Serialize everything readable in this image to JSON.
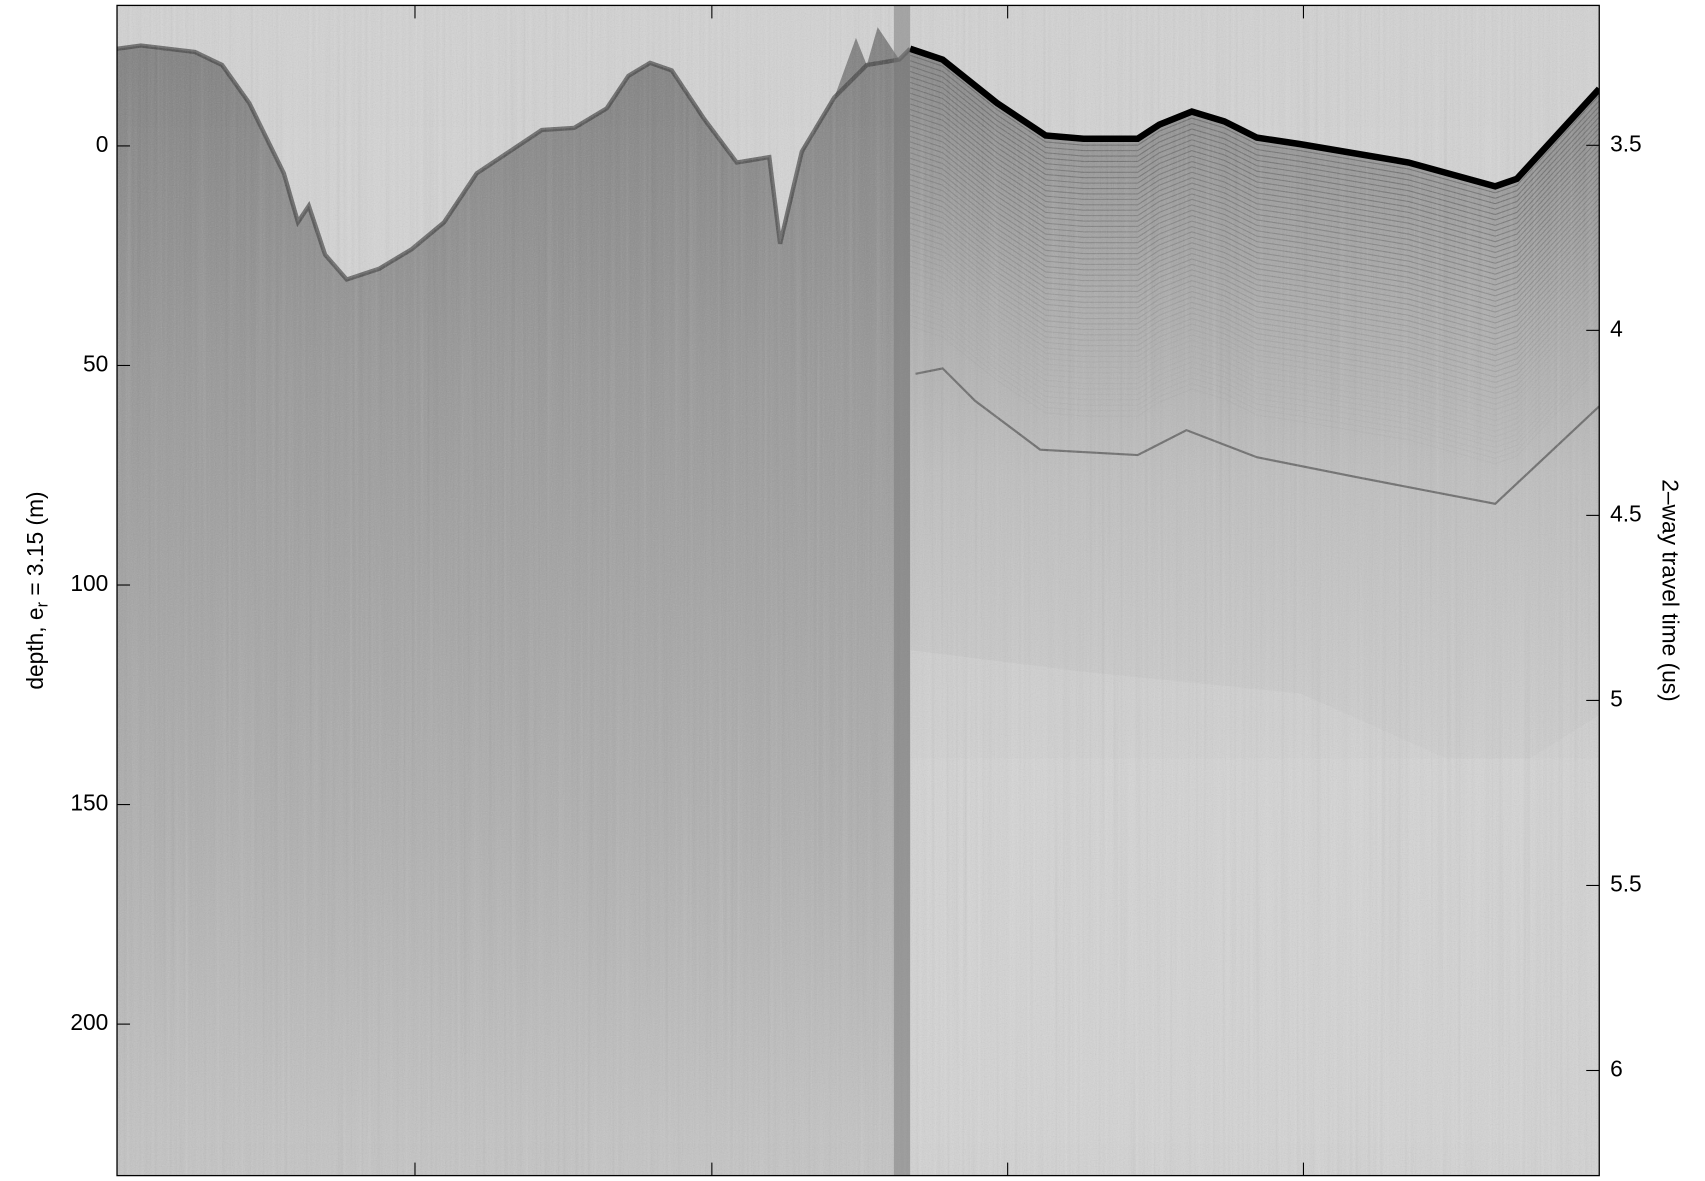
{
  "chart_data": {
    "type": "radargram",
    "ylabel": "depth, e",
    "ylabel_sub": "r",
    "ylabel_suffix": " = 3.15 (m)",
    "y2label": "2–way travel time (us)",
    "ylim": [
      -32,
      234.5
    ],
    "yticks": [
      0,
      50,
      100,
      150,
      200
    ],
    "y2lim": [
      3.122,
      6.284
    ],
    "y2ticks": [
      3.5,
      4,
      4.5,
      5,
      5.5,
      6
    ]
  }
}
